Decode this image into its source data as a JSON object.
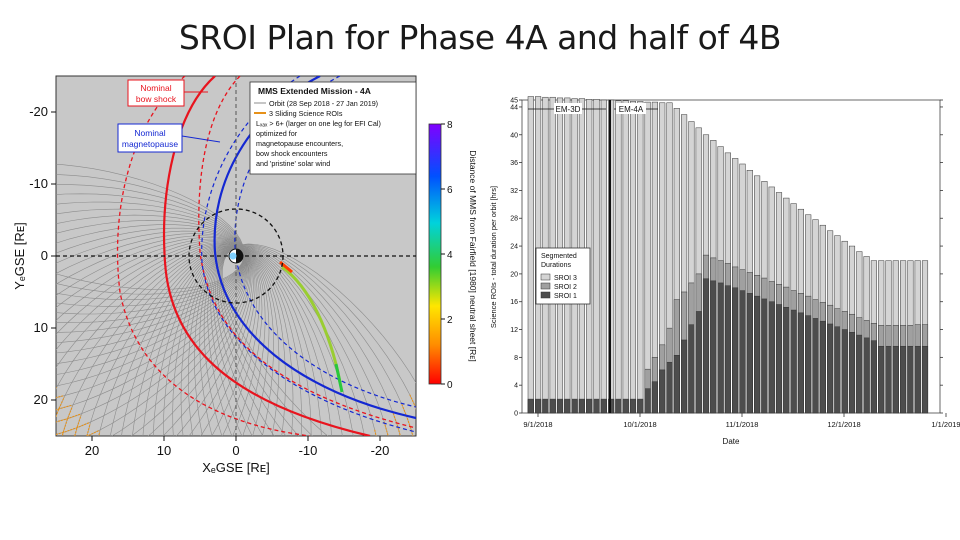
{
  "slide": {
    "title": "SROI Plan for Phase 4A and half of 4B"
  },
  "left_figure": {
    "legend": {
      "title": "MMS Extended Mission - 4A",
      "line_orbit": "Orbit (28 Sep 2018 - 27 Jan 2019)",
      "line_rois": "3 Sliding Science ROIs",
      "line_lshell": "Lₓₐₓ > 6+ (larger on one leg for EFI Cal)",
      "line_opt1": "optimized for",
      "line_opt2": "magnetopause encounters,",
      "line_opt3": "bow shock encounters",
      "line_opt4": "and 'pristine' solar wind"
    },
    "callouts": {
      "bow_shock_1": "Nominal",
      "bow_shock_2": "bow shock",
      "magnetopause_1": "Nominal",
      "magnetopause_2": "magnetopause"
    },
    "x_axis_label": "XₑGSE [Rᴇ]",
    "y_axis_label": "YₑGSE [Rᴇ]",
    "x_ticks": [
      "20",
      "10",
      "0",
      "-10",
      "-20"
    ],
    "y_ticks": [
      "-20",
      "-10",
      "0",
      "10",
      "20"
    ],
    "colorbar_ticks": [
      "8",
      "6",
      "4",
      "2",
      "0"
    ],
    "colorbar_label": "Distance of MMS from Fairfield [1980] neutral sheet [Rᴇ]",
    "colors": {
      "background": "#c8c8c8",
      "bow_shock": "#e8141e",
      "magnetopause": "#1428d2",
      "roi": "#e69119",
      "orbit": "#8c8c8c"
    }
  },
  "chart_data": {
    "type": "bar",
    "stacked": true,
    "xlabel": "Date",
    "ylabel": "Science ROIs - total duration per orbit [hrs]",
    "ylim": [
      0,
      45
    ],
    "y_ticks": [
      0,
      4,
      8,
      12,
      16,
      20,
      24,
      28,
      32,
      36,
      40,
      44,
      45
    ],
    "x_tick_labels": [
      "9/1/2018",
      "10/1/2018",
      "11/1/2018",
      "12/1/2018",
      "1/1/2019"
    ],
    "phase_labels": [
      "EM-3D",
      "EM-4A"
    ],
    "legend_title_1": "Segmented",
    "legend_title_2": "Durations",
    "series": [
      {
        "name": "SROI 3",
        "color": "#d4d4d4",
        "cumulative_top": [
          45.5,
          45.5,
          45.4,
          45.4,
          45.3,
          45.3,
          45.2,
          45.2,
          45.1,
          45.1,
          45.0,
          45.0,
          44.9,
          44.9,
          44.8,
          44.8,
          44.7,
          44.7,
          44.6,
          44.6,
          43.8,
          42.9,
          41.9,
          41.0,
          40.0,
          39.2,
          38.3,
          37.4,
          36.6,
          35.8,
          34.9,
          34.1,
          33.3,
          32.5,
          31.7,
          30.9,
          30.1,
          29.3,
          28.5,
          27.8,
          27.0,
          26.2,
          25.5,
          24.7,
          24.0,
          23.2,
          22.5,
          21.9,
          21.9,
          21.9,
          21.9,
          21.9,
          21.9,
          21.9,
          21.9
        ]
      },
      {
        "name": "SROI 2",
        "color": "#a0a0a0",
        "cumulative_top": [
          2.0,
          2.0,
          2.0,
          2.0,
          2.0,
          2.0,
          2.0,
          2.0,
          2.0,
          2.0,
          2.0,
          2.0,
          2.0,
          2.0,
          2.0,
          2.0,
          6.3,
          8.0,
          9.8,
          12.2,
          16.3,
          17.4,
          18.7,
          20.0,
          22.7,
          22.3,
          21.9,
          21.5,
          21.0,
          20.6,
          20.2,
          19.8,
          19.4,
          18.9,
          18.5,
          18.1,
          17.6,
          17.2,
          16.8,
          16.3,
          15.9,
          15.5,
          15.0,
          14.6,
          14.2,
          13.7,
          13.3,
          12.9,
          12.6,
          12.6,
          12.6,
          12.6,
          12.6,
          12.7,
          12.7
        ]
      },
      {
        "name": "SROI 1",
        "color": "#4d4d4d",
        "cumulative_top": [
          1.9,
          1.9,
          1.9,
          1.9,
          1.9,
          1.9,
          1.9,
          1.9,
          1.9,
          1.9,
          1.9,
          1.9,
          1.9,
          1.9,
          1.9,
          1.9,
          3.5,
          4.5,
          6.2,
          7.3,
          8.3,
          10.5,
          12.7,
          14.6,
          19.3,
          19.0,
          18.7,
          18.3,
          18.0,
          17.6,
          17.2,
          16.8,
          16.4,
          16.0,
          15.6,
          15.2,
          14.8,
          14.4,
          14.0,
          13.6,
          13.2,
          12.8,
          12.4,
          12.0,
          11.6,
          11.2,
          10.8,
          10.4,
          9.6,
          9.6,
          9.6,
          9.6,
          9.6,
          9.6,
          9.6
        ]
      }
    ]
  }
}
